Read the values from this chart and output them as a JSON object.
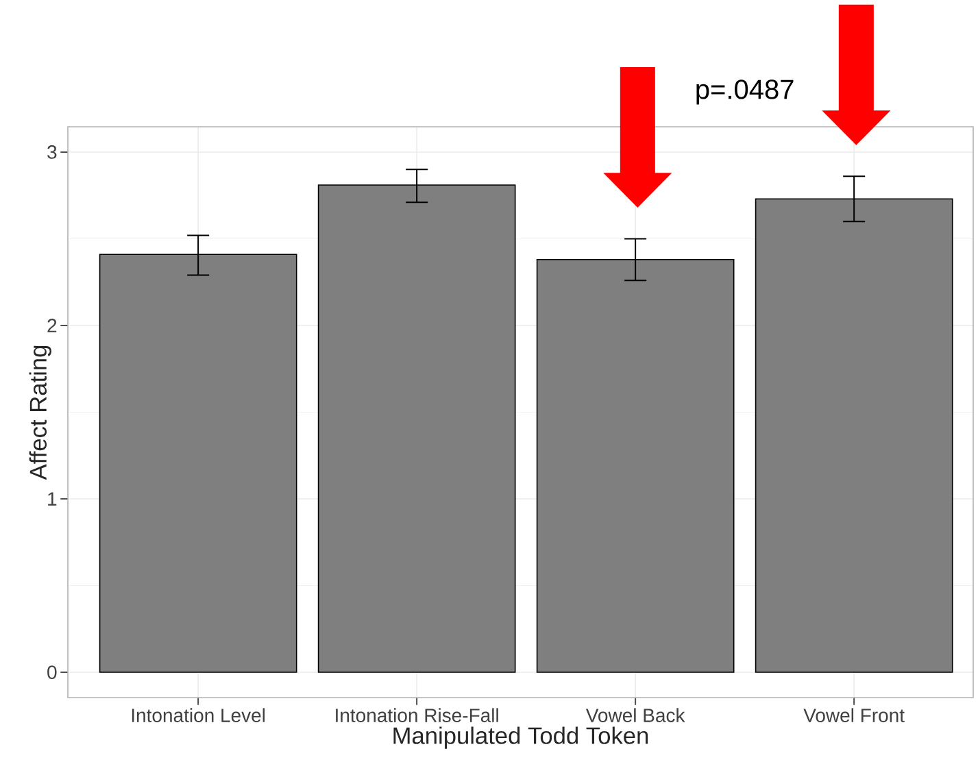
{
  "chart_data": {
    "type": "bar",
    "xlabel": "Manipulated Todd Token",
    "ylabel": "Affect Rating",
    "categories": [
      "Intonation Level",
      "Intonation Rise-Fall",
      "Vowel Back",
      "Vowel Front"
    ],
    "values": [
      2.41,
      2.81,
      2.38,
      2.73
    ],
    "errors": [
      [
        2.29,
        2.52
      ],
      [
        2.71,
        2.9
      ],
      [
        2.26,
        2.5
      ],
      [
        2.6,
        2.86
      ]
    ],
    "color": "#7f7f7f",
    "ylim": [
      -0.146,
      3.146
    ],
    "yticks": [
      0,
      1,
      2,
      3
    ],
    "grid": true,
    "annotations": [
      "p=.0487"
    ]
  }
}
